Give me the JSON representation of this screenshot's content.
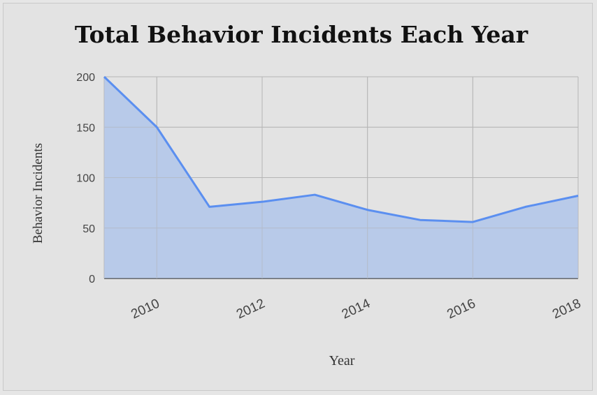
{
  "chart_data": {
    "type": "area",
    "title": "Total Behavior Incidents Each Year",
    "xlabel": "Year",
    "ylabel": "Behavior Incidents",
    "x": [
      2009,
      2010,
      2011,
      2012,
      2013,
      2014,
      2015,
      2016,
      2017,
      2018
    ],
    "values": [
      200,
      150,
      71,
      76,
      83,
      68,
      58,
      56,
      71,
      82
    ],
    "xlim": [
      2009,
      2018
    ],
    "ylim": [
      0,
      200
    ],
    "y_ticks": [
      "0",
      "50",
      "100",
      "150",
      "200"
    ],
    "x_ticks": [
      "2010",
      "2012",
      "2014",
      "2016",
      "2018"
    ],
    "x_tick_values": [
      2010,
      2012,
      2014,
      2016,
      2018
    ],
    "y_tick_values": [
      0,
      50,
      100,
      150,
      200
    ],
    "grid": true,
    "legend": "none",
    "colors": {
      "line": "#5b8ff0",
      "fill": "#b3c6e9",
      "grid": "#b5b5b5"
    }
  }
}
